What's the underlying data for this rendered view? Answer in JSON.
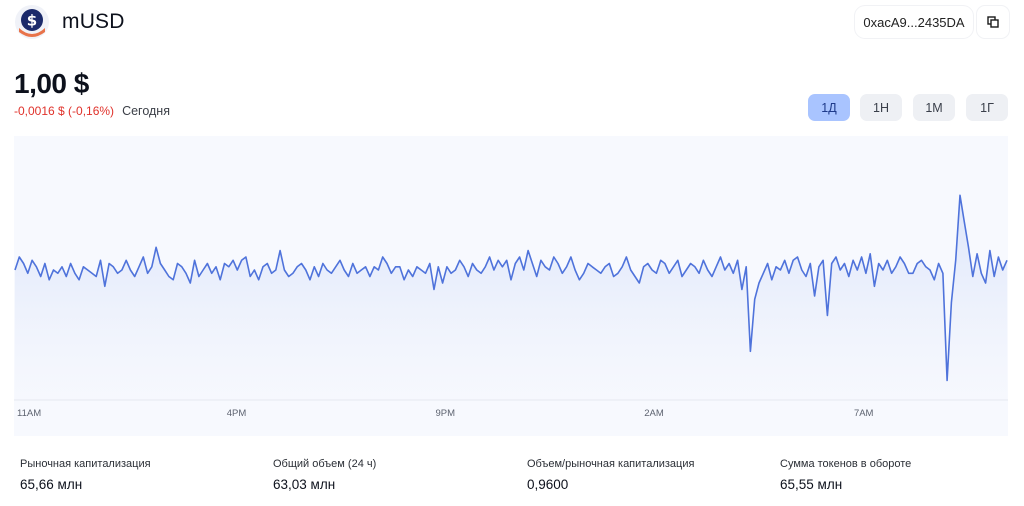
{
  "header": {
    "token_name": "mUSD",
    "logo_icon": "dollar-coin-icon",
    "address": "0xacA9...2435DA",
    "copy_icon": "copy-icon"
  },
  "price": {
    "value": "1,00 $",
    "change": "-0,0016 $ (-0,16%)",
    "period": "Сегодня",
    "change_color": "#e0322b"
  },
  "ranges": [
    {
      "label": "1Д",
      "active": true
    },
    {
      "label": "1Н",
      "active": false
    },
    {
      "label": "1М",
      "active": false
    },
    {
      "label": "1Г",
      "active": false
    }
  ],
  "chart_data": {
    "type": "area",
    "title": "",
    "xlabel": "",
    "ylabel": "",
    "x_ticks": [
      "11AM",
      "4PM",
      "9PM",
      "2AM",
      "7AM"
    ],
    "x_tick_positions": [
      0,
      0.211,
      0.421,
      0.631,
      0.842
    ],
    "line_color": "#4f73db",
    "fill_color": "#dfe7fb",
    "ylim": [
      0.96,
      1.04
    ],
    "series": [
      {
        "values": [
          1.0,
          1.004,
          1.002,
          0.999,
          1.003,
          1.001,
          0.998,
          1.002,
          0.997,
          1.0,
          0.999,
          1.001,
          0.998,
          1.002,
          0.999,
          0.997,
          1.001,
          1.0,
          0.999,
          0.998,
          1.003,
          0.995,
          1.002,
          1.001,
          0.999,
          1.0,
          1.003,
          1.0,
          0.998,
          1.001,
          1.004,
          0.999,
          1.001,
          1.007,
          1.002,
          1.0,
          0.998,
          0.997,
          1.002,
          1.001,
          0.999,
          0.996,
          1.003,
          0.998,
          1.0,
          1.002,
          0.999,
          1.001,
          0.997,
          1.002,
          1.001,
          1.003,
          1.0,
          1.003,
          1.004,
          0.998,
          1.0,
          0.997,
          1.001,
          1.002,
          0.999,
          1.0,
          1.006,
          1.0,
          0.998,
          0.999,
          1.001,
          1.002,
          1.0,
          0.997,
          1.001,
          0.998,
          1.002,
          1.0,
          0.999,
          1.001,
          1.003,
          1.0,
          0.998,
          1.002,
          0.999,
          1.0,
          1.001,
          0.998,
          1.001,
          1.0,
          1.004,
          1.002,
          0.999,
          1.001,
          1.001,
          0.997,
          1.0,
          0.998,
          1.001,
          1.0,
          0.999,
          1.002,
          0.994,
          1.001,
          0.996,
          1.001,
          0.999,
          1.0,
          1.003,
          1.001,
          0.998,
          1.002,
          1.0,
          0.999,
          1.001,
          1.004,
          1.0,
          1.003,
          1.001,
          1.003,
          0.997,
          1.002,
          1.004,
          1.0,
          1.006,
          1.002,
          0.998,
          1.003,
          1.001,
          1.0,
          1.004,
          1.002,
          0.999,
          1.001,
          1.004,
          1.0,
          0.997,
          0.999,
          1.002,
          1.001,
          1.0,
          0.999,
          1.001,
          1.002,
          0.998,
          0.999,
          1.001,
          1.004,
          1.0,
          0.998,
          0.996,
          1.001,
          1.002,
          1.0,
          0.999,
          1.003,
          1.002,
          0.999,
          1.001,
          1.003,
          0.998,
          1.0,
          1.002,
          1.001,
          0.999,
          1.003,
          1.0,
          0.998,
          1.001,
          1.004,
          1.0,
          1.002,
          0.999,
          1.003,
          0.994,
          1.001,
          0.975,
          0.991,
          0.996,
          0.999,
          1.002,
          0.997,
          1.001,
          1.0,
          1.003,
          0.999,
          1.003,
          1.004,
          1.0,
          0.998,
          1.002,
          0.992,
          1.001,
          1.003,
          0.986,
          1.002,
          1.004,
          1.0,
          1.002,
          0.998,
          1.003,
          1.0,
          1.004,
          0.999,
          1.005,
          0.995,
          1.002,
          1.0,
          1.003,
          0.999,
          1.001,
          1.004,
          1.002,
          0.999,
          0.999,
          1.002,
          1.003,
          1.001,
          1.0,
          0.997,
          1.002,
          0.999,
          0.966,
          0.99,
          1.003,
          1.023,
          1.015,
          1.007,
          0.998,
          1.005,
          0.999,
          0.996,
          1.006,
          0.998,
          1.004,
          1.0,
          1.003
        ]
      }
    ]
  },
  "stats": [
    {
      "label": "Рыночная капитализация",
      "value": "65,66 млн"
    },
    {
      "label": "Общий объем (24 ч)",
      "value": "63,03 млн"
    },
    {
      "label": "Объем/рыночная капитализация",
      "value": "0,9600"
    },
    {
      "label": "Сумма токенов в обороте",
      "value": "65,55 млн"
    }
  ]
}
